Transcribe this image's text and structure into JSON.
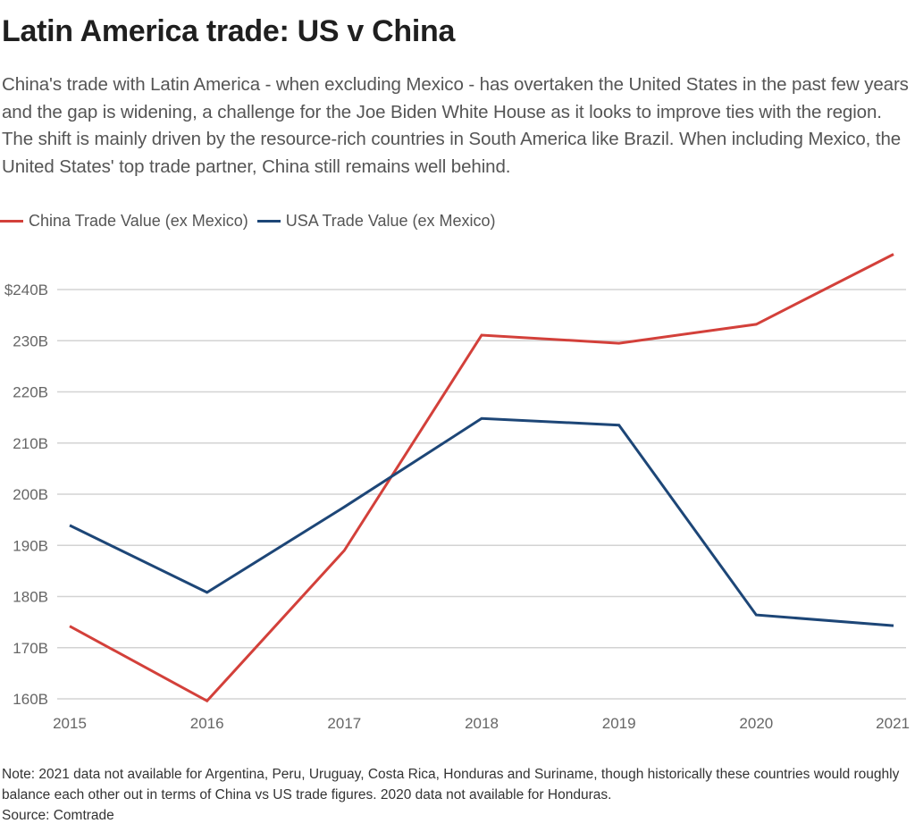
{
  "header": {
    "title": "Latin America trade: US v China",
    "subtitle": "China's trade with Latin America - when excluding Mexico - has overtaken the United States in the past few years and the gap is widening, a challenge for the Joe Biden White House as it looks to improve ties with the region. The shift is mainly driven by the resource-rich countries in South America like Brazil. When including Mexico, the United States' top trade partner, China still remains well behind."
  },
  "footer": {
    "note": "Note: 2021 data not available for Argentina, Peru, Uruguay, Costa Rica, Honduras and Suriname, though historically these countries would roughly balance each other out in terms of China vs US trade figures. 2020 data not available for Honduras.",
    "source": "Source: Comtrade"
  },
  "colors": {
    "china": "#d3403a",
    "usa": "#1d4677",
    "grid": "#d3d3d3",
    "axis_text": "#666666"
  },
  "chart_data": {
    "type": "line",
    "title": "Latin America trade: US v China",
    "xlabel": "",
    "ylabel": "",
    "x": [
      "2015",
      "2016",
      "2017",
      "2018",
      "2019",
      "2020",
      "2021"
    ],
    "series": [
      {
        "name": "China Trade Value (ex Mexico)",
        "color": "#d3403a",
        "values": [
          174.2,
          159.6,
          189.0,
          231.1,
          229.5,
          233.2,
          246.9
        ]
      },
      {
        "name": "USA Trade Value (ex Mexico)",
        "color": "#1d4677",
        "values": [
          193.9,
          180.8,
          197.5,
          214.8,
          213.5,
          176.4,
          174.3
        ]
      }
    ],
    "ylim": [
      160,
      240
    ],
    "yticks": [
      160,
      170,
      180,
      190,
      200,
      210,
      220,
      230,
      240
    ],
    "ytick_labels": [
      "160B",
      "170B",
      "180B",
      "190B",
      "200B",
      "210B",
      "220B",
      "230B",
      "$240B"
    ],
    "grid": true,
    "legend_position": "top-left"
  }
}
